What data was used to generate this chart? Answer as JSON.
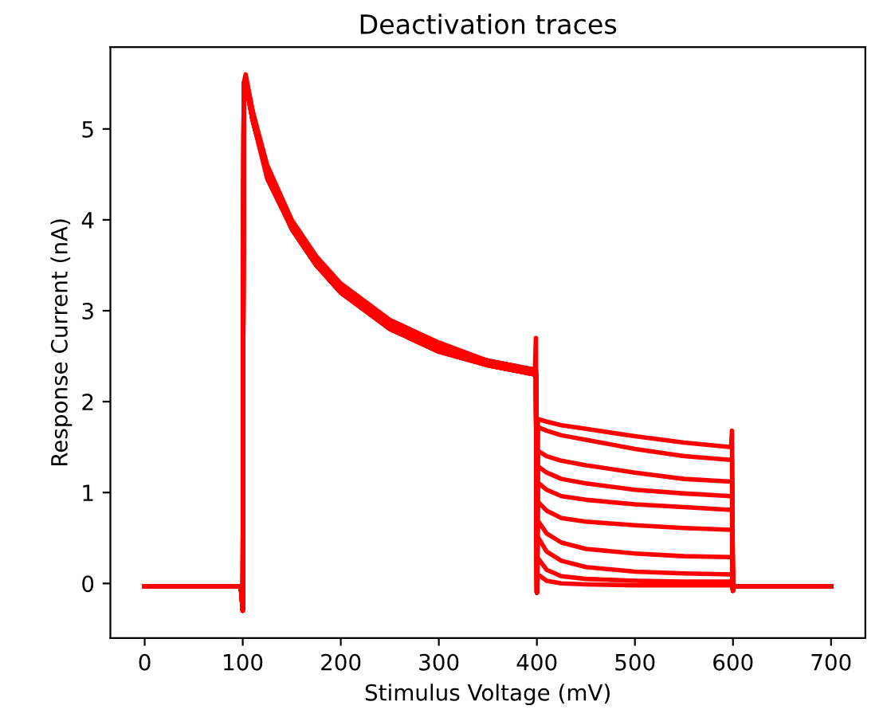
{
  "chart_data": {
    "type": "line",
    "title": "Deactivation traces",
    "xlabel": "Stimulus Voltage (mV)",
    "ylabel": "Response Current (nA)",
    "xlim": [
      -35,
      735
    ],
    "ylim": [
      -0.6,
      5.9
    ],
    "xticks": [
      0,
      100,
      200,
      300,
      400,
      500,
      600,
      700
    ],
    "yticks": [
      0,
      1,
      2,
      3,
      4,
      5
    ],
    "grid": false,
    "marker": "none",
    "line_style": "solid",
    "x": [
      0,
      98,
      100,
      101,
      103,
      110,
      125,
      150,
      175,
      200,
      250,
      300,
      350,
      398,
      399,
      400,
      401,
      410,
      425,
      450,
      500,
      550,
      598,
      599,
      600,
      601,
      700
    ],
    "series": [
      {
        "color": "#ff0000",
        "values": [
          -0.03,
          -0.03,
          -0.3,
          5.5,
          5.6,
          5.2,
          4.6,
          4.0,
          3.6,
          3.3,
          2.9,
          2.65,
          2.45,
          2.35,
          2.7,
          -0.1,
          1.81,
          1.78,
          1.74,
          1.7,
          1.62,
          1.55,
          1.5,
          1.68,
          -0.08,
          -0.03,
          -0.03
        ]
      },
      {
        "color": "#ff0000",
        "values": [
          -0.03,
          -0.03,
          -0.3,
          5.45,
          5.55,
          5.1,
          4.5,
          3.95,
          3.55,
          3.25,
          2.85,
          2.6,
          2.42,
          2.3,
          2.3,
          -0.1,
          1.72,
          1.68,
          1.63,
          1.58,
          1.48,
          1.4,
          1.36,
          1.36,
          -0.08,
          -0.03,
          -0.03
        ]
      },
      {
        "color": "#ff0000",
        "values": [
          -0.03,
          -0.03,
          -0.3,
          5.5,
          5.5,
          5.15,
          4.55,
          3.9,
          3.5,
          3.2,
          2.8,
          2.55,
          2.4,
          2.3,
          2.3,
          -0.1,
          1.46,
          1.4,
          1.35,
          1.3,
          1.22,
          1.15,
          1.12,
          1.12,
          -0.08,
          -0.03,
          -0.03
        ]
      },
      {
        "color": "#ff0000",
        "values": [
          -0.03,
          -0.03,
          -0.3,
          5.4,
          5.5,
          5.1,
          4.45,
          3.9,
          3.5,
          3.2,
          2.8,
          2.6,
          2.4,
          2.3,
          2.3,
          -0.1,
          1.29,
          1.22,
          1.15,
          1.1,
          1.03,
          0.99,
          0.96,
          0.96,
          -0.08,
          -0.03,
          -0.03
        ]
      },
      {
        "color": "#ff0000",
        "values": [
          -0.03,
          -0.03,
          -0.3,
          5.45,
          5.55,
          5.2,
          4.5,
          3.95,
          3.55,
          3.25,
          2.85,
          2.6,
          2.45,
          2.35,
          2.35,
          -0.1,
          1.11,
          1.03,
          0.96,
          0.92,
          0.87,
          0.84,
          0.81,
          0.81,
          -0.08,
          -0.03,
          -0.03
        ]
      },
      {
        "color": "#ff0000",
        "values": [
          -0.03,
          -0.03,
          -0.3,
          5.5,
          5.5,
          5.15,
          4.5,
          3.9,
          3.5,
          3.2,
          2.8,
          2.55,
          2.4,
          2.3,
          2.3,
          -0.1,
          0.9,
          0.8,
          0.72,
          0.68,
          0.64,
          0.61,
          0.59,
          0.59,
          -0.08,
          -0.03,
          -0.03
        ]
      },
      {
        "color": "#ff0000",
        "values": [
          -0.03,
          -0.03,
          -0.3,
          5.4,
          5.5,
          5.1,
          4.5,
          3.95,
          3.55,
          3.25,
          2.85,
          2.6,
          2.45,
          2.35,
          2.35,
          -0.1,
          0.69,
          0.55,
          0.45,
          0.38,
          0.33,
          0.3,
          0.29,
          0.29,
          -0.08,
          -0.03,
          -0.03
        ]
      },
      {
        "color": "#ff0000",
        "values": [
          -0.03,
          -0.03,
          -0.3,
          5.45,
          5.5,
          5.15,
          4.55,
          3.9,
          3.5,
          3.2,
          2.8,
          2.6,
          2.4,
          2.3,
          2.3,
          -0.1,
          0.51,
          0.35,
          0.25,
          0.18,
          0.13,
          0.11,
          0.1,
          0.1,
          -0.08,
          -0.03,
          -0.03
        ]
      },
      {
        "color": "#ff0000",
        "values": [
          -0.03,
          -0.03,
          -0.3,
          5.5,
          5.55,
          5.2,
          4.5,
          3.95,
          3.55,
          3.25,
          2.85,
          2.6,
          2.45,
          2.35,
          2.35,
          -0.1,
          0.28,
          0.15,
          0.08,
          0.05,
          0.03,
          0.02,
          0.02,
          0.02,
          -0.08,
          -0.03,
          -0.03
        ]
      },
      {
        "color": "#ff0000",
        "values": [
          -0.03,
          -0.03,
          -0.3,
          5.4,
          5.5,
          5.1,
          4.5,
          3.9,
          3.5,
          3.2,
          2.8,
          2.55,
          2.4,
          2.3,
          2.3,
          -0.1,
          0.1,
          0.03,
          0.0,
          -0.01,
          -0.02,
          -0.02,
          -0.02,
          -0.02,
          -0.08,
          -0.03,
          -0.03
        ]
      }
    ]
  }
}
